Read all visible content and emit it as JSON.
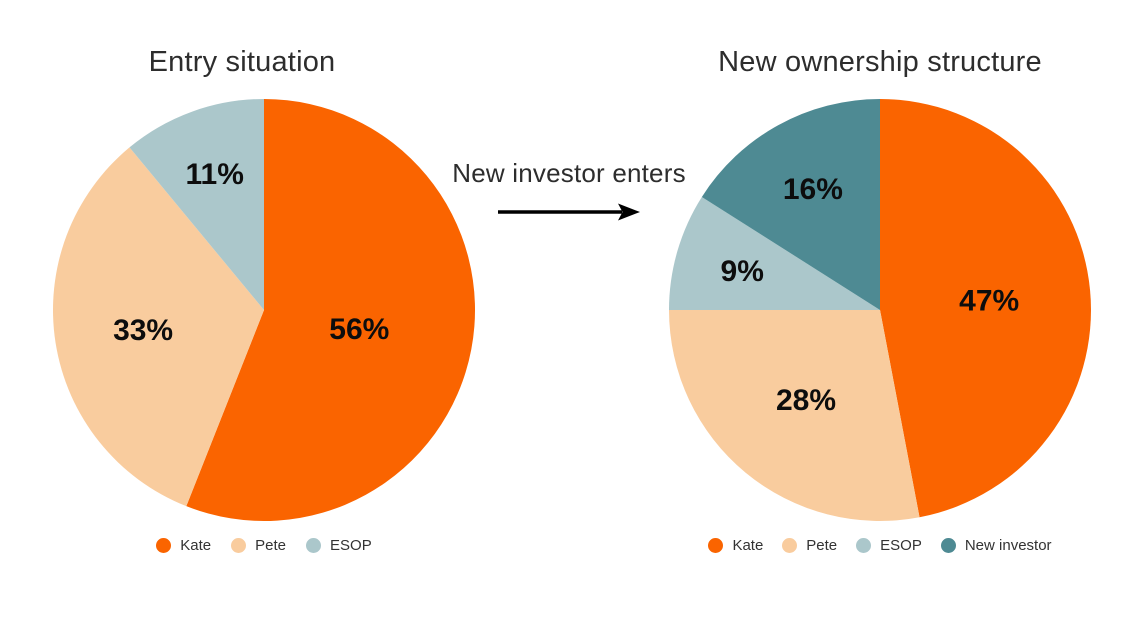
{
  "background": "#ffffff",
  "annotation": {
    "text": "New investor enters",
    "arrow_icon": "arrow-right",
    "arrow_color": "#000000"
  },
  "text_colors": {
    "title": "#2d2d2d",
    "slice_label": "#0d0d0d",
    "legend": "#333333"
  },
  "chart_data": [
    {
      "type": "pie",
      "title": "Entry situation",
      "value_suffix": "%",
      "start_angle_deg": 0,
      "direction": "clockwise",
      "legend_position": "bottom",
      "slices": [
        {
          "label": "Kate",
          "value": 56,
          "color": "#FA6400",
          "label_r": 0.46
        },
        {
          "label": "Pete",
          "value": 33,
          "color": "#F9CC9E",
          "label_r": 0.58
        },
        {
          "label": "ESOP",
          "value": 11,
          "color": "#ABC7CB",
          "label_r": 0.69
        }
      ]
    },
    {
      "type": "pie",
      "title": "New ownership structure",
      "value_suffix": "%",
      "start_angle_deg": 0,
      "direction": "clockwise",
      "legend_position": "bottom",
      "slices": [
        {
          "label": "Kate",
          "value": 47,
          "color": "#FA6400",
          "label_r": 0.52
        },
        {
          "label": "Pete",
          "value": 28,
          "color": "#F9CC9E",
          "label_r": 0.55
        },
        {
          "label": "ESOP",
          "value": 9,
          "color": "#ABC7CB",
          "label_r": 0.68
        },
        {
          "label": "New investor",
          "value": 16,
          "color": "#4E8A93",
          "label_r": 0.66
        }
      ]
    }
  ]
}
